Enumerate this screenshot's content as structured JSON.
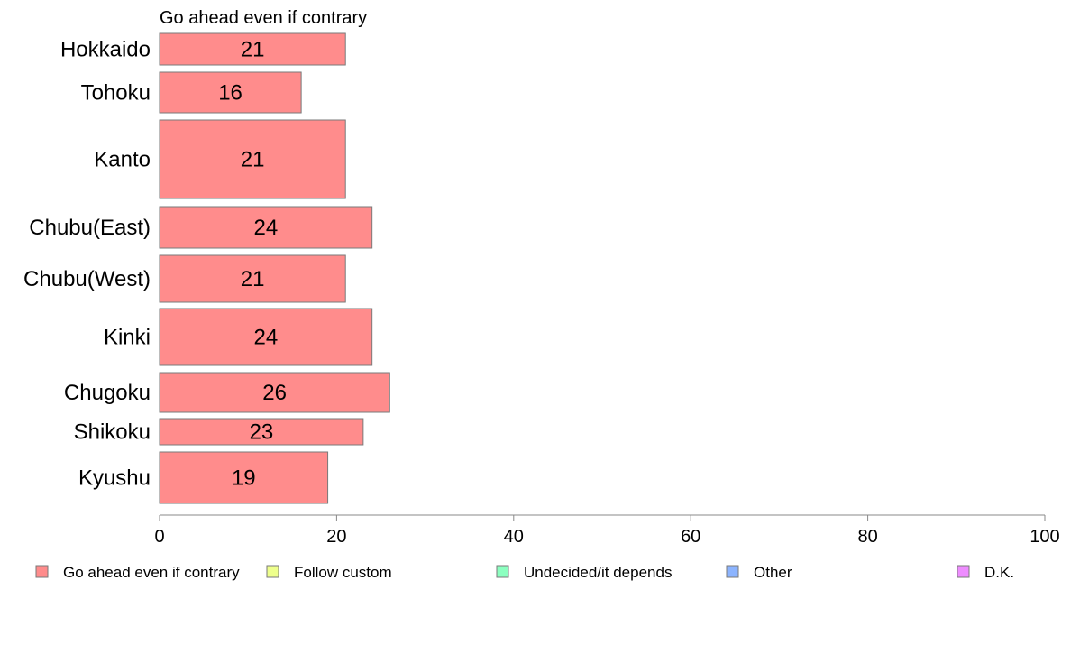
{
  "chart_data": {
    "type": "bar",
    "orientation": "horizontal",
    "title": "Go ahead even if contrary",
    "categories": [
      "Hokkaido",
      "Tohoku",
      "Kanto",
      "Chubu(East)",
      "Chubu(West)",
      "Kinki",
      "Chugoku",
      "Shikoku",
      "Kyushu"
    ],
    "series": [
      {
        "name": "Go ahead even if contrary",
        "color": "#ff8c8c",
        "values": [
          21,
          16,
          21,
          24,
          21,
          24,
          26,
          23,
          19
        ]
      }
    ],
    "xlim": [
      0,
      100
    ],
    "xticks": [
      0,
      20,
      40,
      60,
      80,
      100
    ],
    "grid": false,
    "legend_placement": "bottom",
    "legend": [
      {
        "label": "Go ahead even if contrary",
        "color": "#ff8c8c"
      },
      {
        "label": "Follow custom",
        "color": "#eeff8c"
      },
      {
        "label": "Undecided/it depends",
        "color": "#8cffc0"
      },
      {
        "label": "Other",
        "color": "#8cb4ff"
      },
      {
        "label": "D.K.",
        "color": "#ee8cff"
      }
    ]
  }
}
